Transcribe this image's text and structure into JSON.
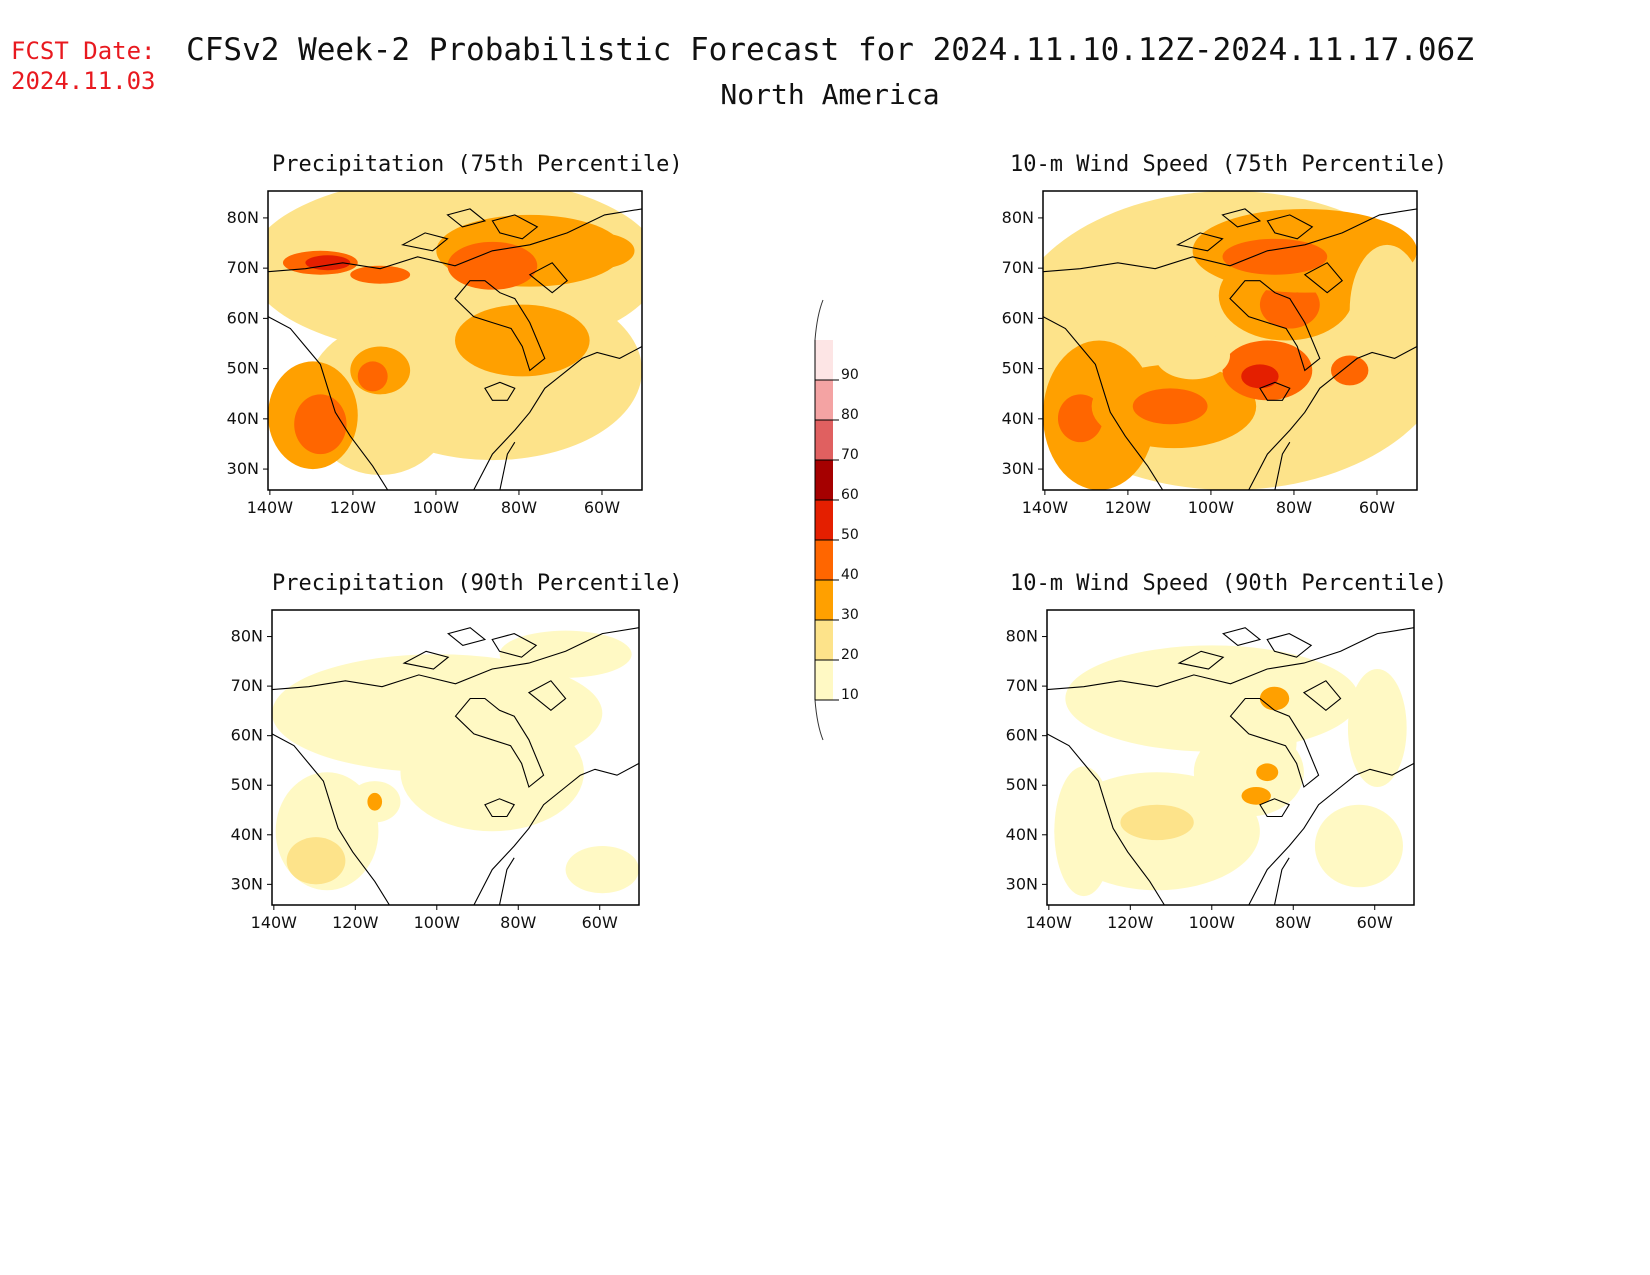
{
  "header": {
    "fcst_label": "FCST Date:",
    "fcst_date": "2024.11.03",
    "title": "CFSv2 Week-2 Probabilistic Forecast for 2024.11.10.12Z-2024.11.17.06Z",
    "subtitle": "North America"
  },
  "colors": {
    "fcst_text": "#e8191f",
    "levels": [
      "#fff9c4",
      "#fde38a",
      "#ffa000",
      "#ff6600",
      "#e41f00",
      "#a50000",
      "#e06060",
      "#f4a3a3",
      "#fde5e5"
    ]
  },
  "axes": {
    "lat_ticks": [
      "80N",
      "70N",
      "60N",
      "50N",
      "40N",
      "30N"
    ],
    "lon_ticks": [
      "140W",
      "120W",
      "100W",
      "80W",
      "60W"
    ]
  },
  "panels": [
    {
      "title": "Precipitation (75th Percentile)"
    },
    {
      "title": "10-m Wind Speed (75th Percentile)"
    },
    {
      "title": "Precipitation (90th Percentile)"
    },
    {
      "title": "10-m Wind Speed (90th Percentile)"
    }
  ],
  "colorbar": {
    "labels": [
      "90",
      "80",
      "70",
      "60",
      "50",
      "40",
      "30",
      "20",
      "10"
    ]
  }
}
